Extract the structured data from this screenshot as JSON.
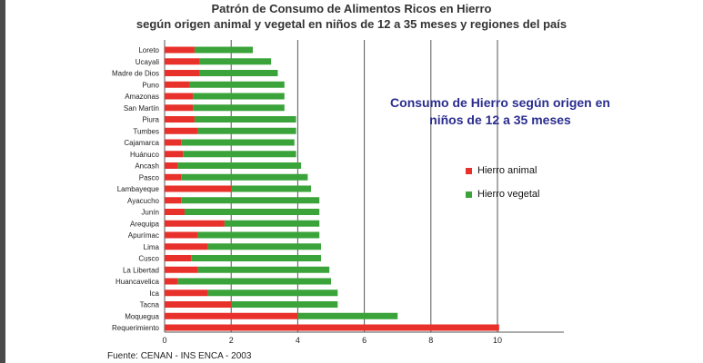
{
  "chart_data": {
    "type": "bar",
    "orientation": "horizontal",
    "stacked": true,
    "title": "Patrón de Consumo de Alimentos Ricos en Hierro",
    "subtitle": "según origen animal y vegetal en niños de 12 a 35 meses y regiones del país",
    "annotation": "Consumo de Hierro según origen en niños de 12 a 35 meses",
    "source": "Fuente: CENAN - INS ENCA - 2003",
    "categories": [
      "Loreto",
      "Ucayali",
      "Madre de Dios",
      "Puno",
      "Amazonas",
      "San Martín",
      "Piura",
      "Tumbes",
      "Cajamarca",
      "Huánuco",
      "Ancash",
      "Pasco",
      "Lambayeque",
      "Ayacucho",
      "Junín",
      "Arequipa",
      "Apurímac",
      "Lima",
      "Cusco",
      "La Libertad",
      "Huancavelica",
      "Ica",
      "Tacna",
      "Moquegua",
      "Requerimiento"
    ],
    "series": [
      {
        "name": "Hierro animal",
        "color": "#e8312a",
        "values": [
          0.9,
          1.05,
          1.05,
          0.75,
          0.85,
          0.85,
          0.9,
          1.0,
          0.5,
          0.55,
          0.4,
          0.5,
          2.0,
          0.5,
          0.6,
          1.8,
          1.0,
          1.3,
          0.8,
          1.0,
          0.4,
          1.3,
          2.0,
          4.0,
          10.05
        ]
      },
      {
        "name": "Hierro vegetal",
        "color": "#3aa33a",
        "values": [
          1.75,
          2.15,
          2.35,
          2.85,
          2.75,
          2.75,
          3.05,
          2.95,
          3.4,
          3.4,
          3.7,
          3.8,
          2.4,
          4.15,
          4.05,
          2.85,
          3.65,
          3.4,
          3.9,
          3.95,
          4.6,
          3.9,
          3.2,
          3.0,
          0
        ]
      }
    ],
    "xlim": [
      0,
      12
    ],
    "xticks": [
      0,
      2,
      4,
      6,
      8,
      10
    ],
    "grid": true,
    "legend_position": "right"
  }
}
